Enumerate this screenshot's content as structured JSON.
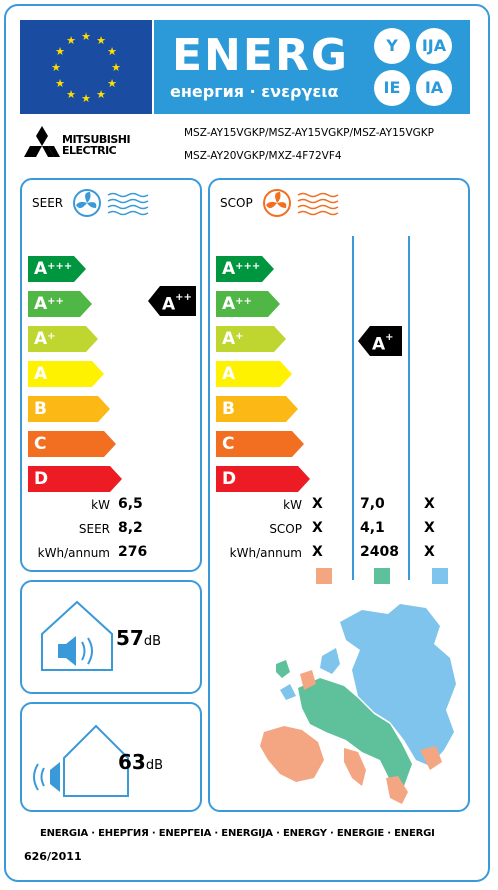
{
  "header": {
    "energ_word": "ENERG",
    "energ_subtitle": "енергия · ενεργεια",
    "language_codes": [
      "Y",
      "IJA",
      "IE",
      "IA"
    ]
  },
  "supplier": {
    "brand_line1": "MITSUBISHI",
    "brand_line2": "ELECTRIC",
    "model_line1": "MSZ-AY15VGKP/MSZ-AY15VGKP/MSZ-AY15VGKP",
    "model_line2": "MSZ-AY20VGKP/MXZ-4F72VF4"
  },
  "efficiency_scale": [
    {
      "base": "A",
      "sup": "+++",
      "color": "#00963f"
    },
    {
      "base": "A",
      "sup": "++",
      "color": "#50b747"
    },
    {
      "base": "A",
      "sup": "+",
      "color": "#bfd630"
    },
    {
      "base": "A",
      "sup": "",
      "color": "#fff200"
    },
    {
      "base": "B",
      "sup": "",
      "color": "#fcb814"
    },
    {
      "base": "C",
      "sup": "",
      "color": "#f26f22"
    },
    {
      "base": "D",
      "sup": "",
      "color": "#ed1c24"
    }
  ],
  "seer": {
    "title": "SEER",
    "rating_base": "A",
    "rating_sup": "++",
    "rows": [
      {
        "label": "kW",
        "value": "6,5"
      },
      {
        "label": "SEER",
        "value": "8,2"
      },
      {
        "label": "kWh/annum",
        "value": "276"
      }
    ]
  },
  "scop": {
    "title": "SCOP",
    "rating_base": "A",
    "rating_sup": "+",
    "rows": [
      {
        "label": "kW",
        "col1": "X",
        "col2": "7,0",
        "col3": "X"
      },
      {
        "label": "SCOP",
        "col1": "X",
        "col2": "4,1",
        "col3": "X"
      },
      {
        "label": "kWh/annum",
        "col1": "X",
        "col2": "2408",
        "col3": "X"
      }
    ],
    "zone_colors": [
      "#f4a582",
      "#5ec19b",
      "#7ec4ec"
    ]
  },
  "noise": {
    "indoor_value": "57",
    "indoor_unit": "dB",
    "outdoor_value": "63",
    "outdoor_unit": "dB"
  },
  "footer": {
    "languages": "ENERGIA · ЕНЕРГИЯ · ΕΝΕΡΓΕΙΑ · ENERGIJA · ENERGY · ENERGIE · ENERGI",
    "regulation": "626/2011"
  },
  "colors": {
    "frame_blue": "#3a9ad9",
    "eu_blue": "#1a4da1",
    "energ_blue": "#2c9ad8",
    "eu_star": "#ffdd00"
  }
}
